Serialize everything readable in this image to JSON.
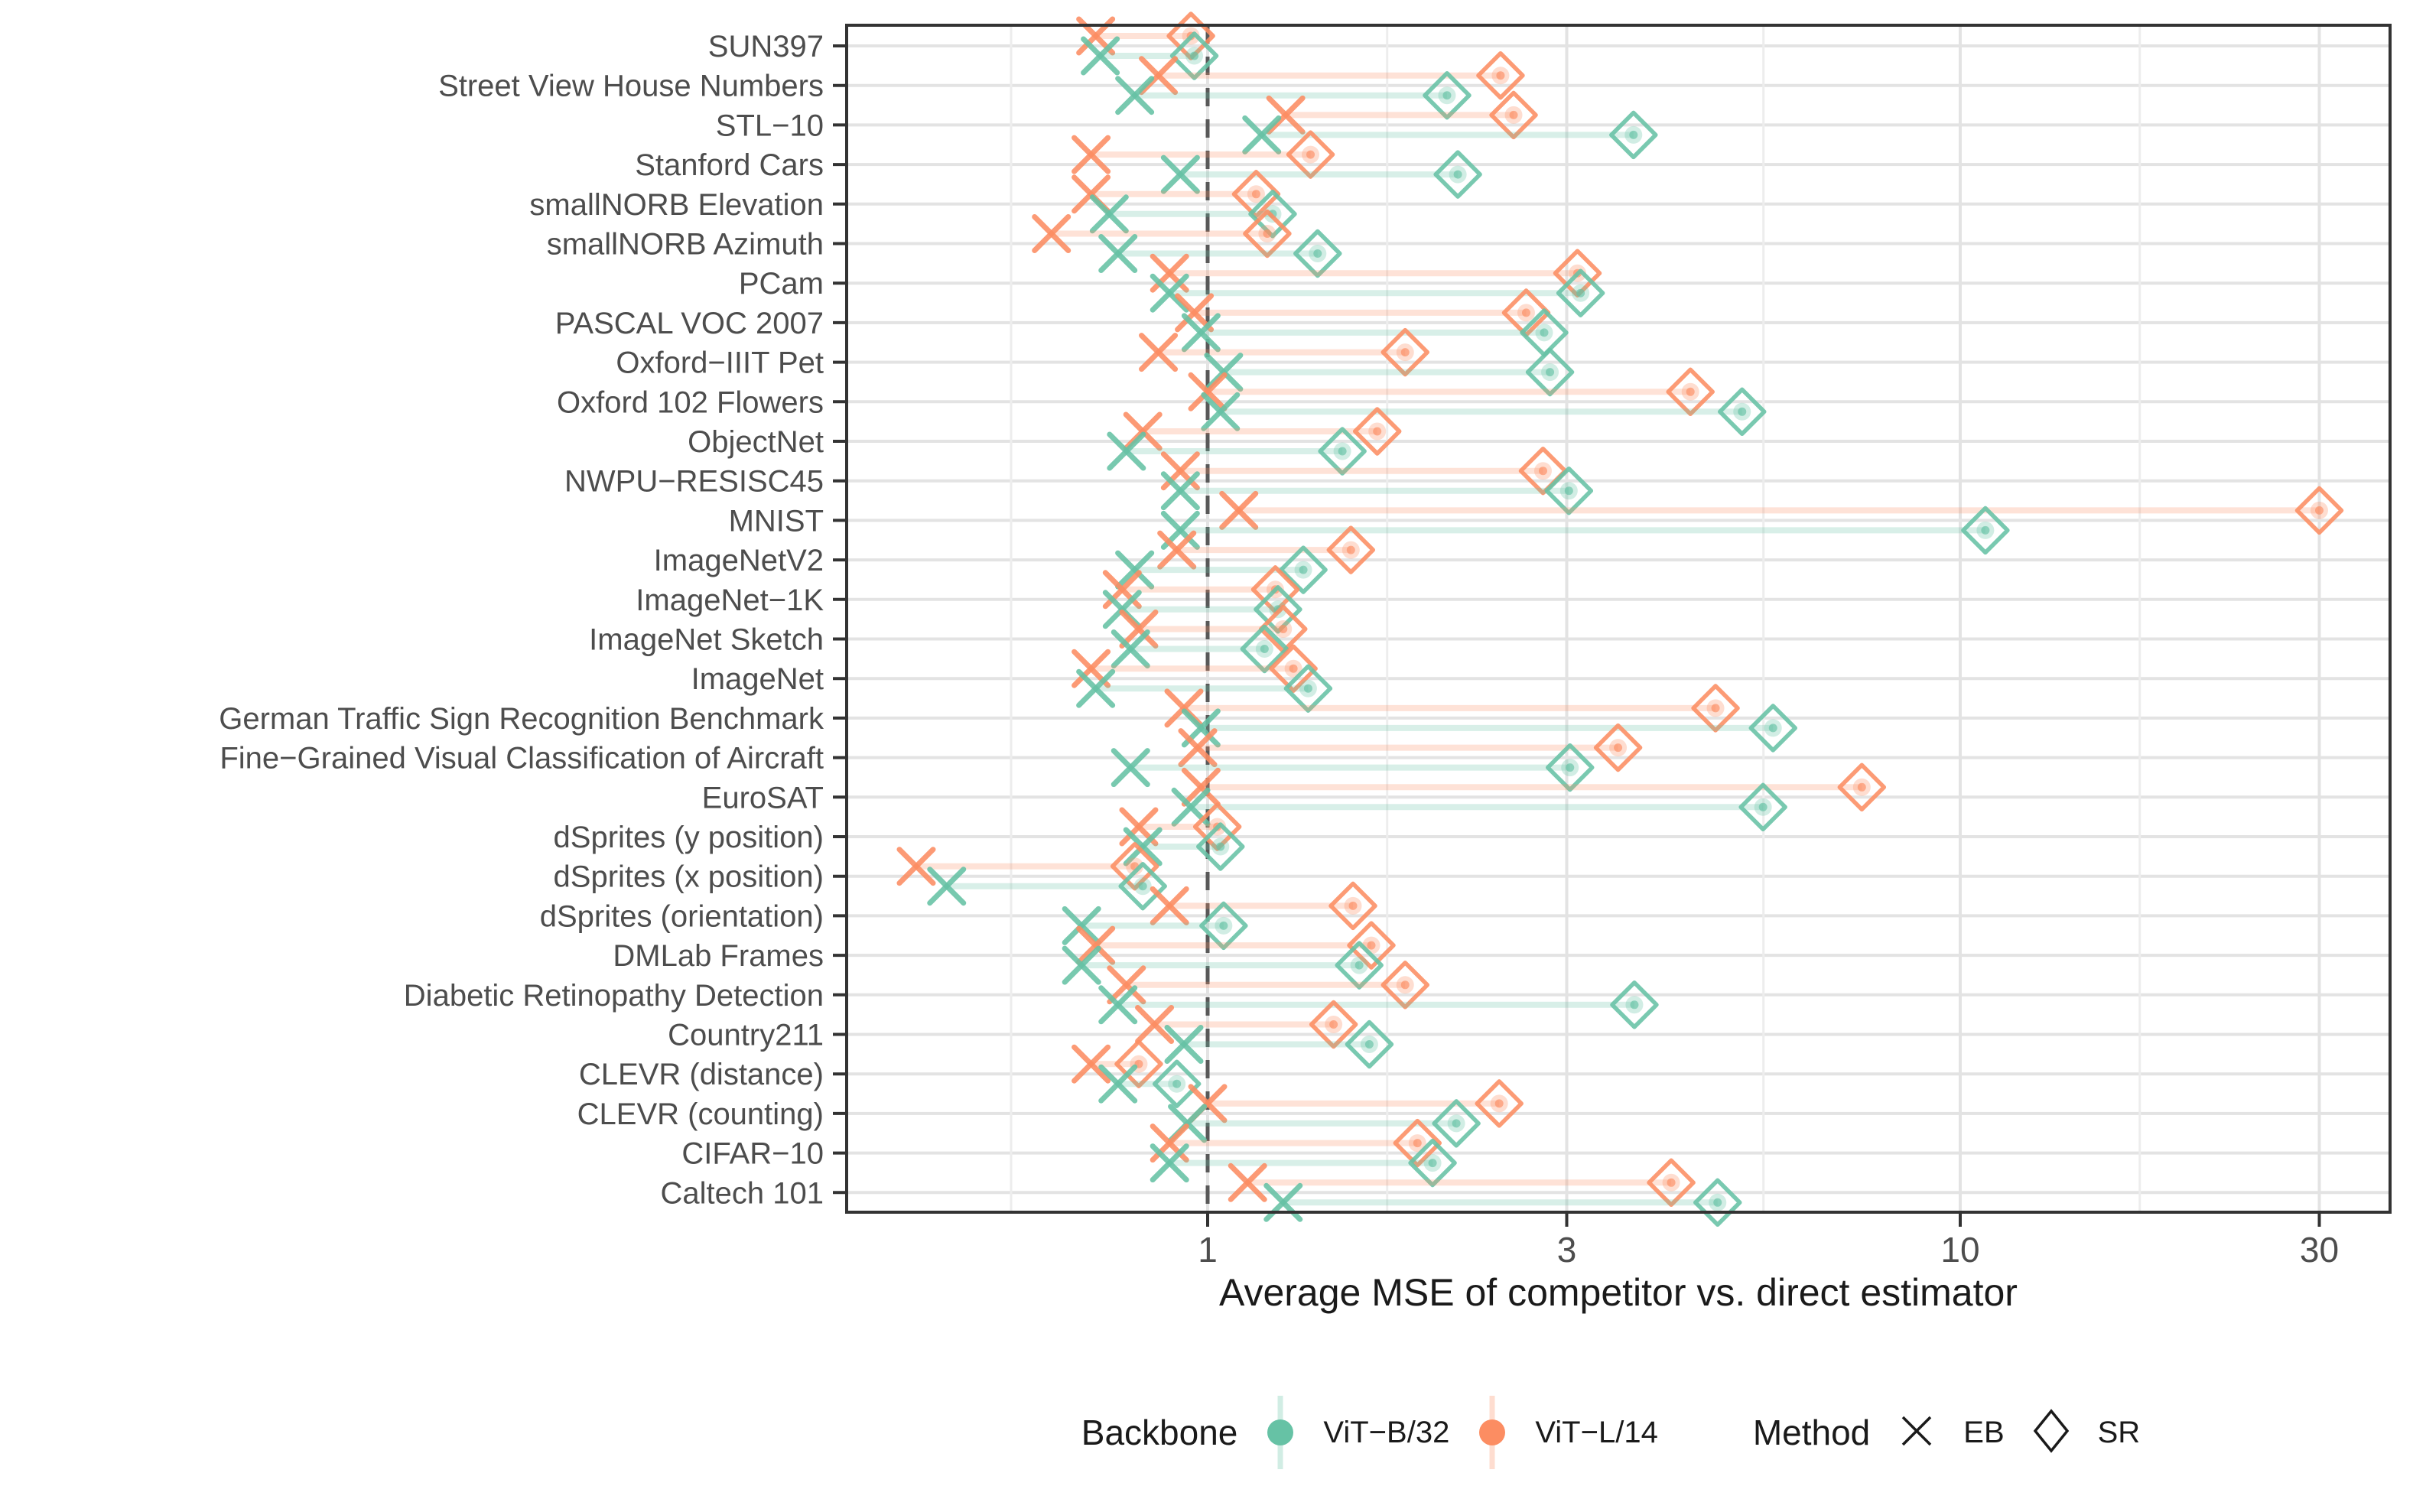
{
  "figure": {
    "xlabel": "Average MSE of competitor vs. direct estimator"
  },
  "legend": {
    "backbone_title": "Backbone",
    "method_title": "Method",
    "backbones": [
      {
        "key": "vitb32",
        "label": "ViT−B/32",
        "color": "#66C2A5"
      },
      {
        "key": "vitl14",
        "label": "ViT−L/14",
        "color": "#FC8D62"
      }
    ],
    "methods": [
      {
        "key": "EB",
        "label": "EB",
        "glyph": "x"
      },
      {
        "key": "SR",
        "label": "SR",
        "glyph": "diamond"
      }
    ]
  },
  "chart_data": {
    "type": "scatter",
    "subtype": "dumbbell-dotplot",
    "title": "",
    "xlabel": "Average MSE of competitor vs. direct estimator",
    "ylabel": "",
    "x_scale": "log10",
    "x_domain": [
      0.34,
      37.5
    ],
    "x_ticks": [
      1,
      3,
      10,
      30
    ],
    "x_minor_ticks": [
      0.548,
      1.732,
      5.477,
      17.32
    ],
    "reference_line_x": 1,
    "grid": "on",
    "legend_position": "bottom",
    "series_colors": {
      "ViT−B/32": "#66C2A5",
      "ViT−L/14": "#FC8D62"
    },
    "marker_shapes": {
      "EB": "x",
      "SR": "open-diamond"
    },
    "rows": [
      {
        "label": "SUN397",
        "vitb32": {
          "EB": 0.72,
          "SR": 0.96
        },
        "vitl14": {
          "EB": 0.71,
          "SR": 0.95
        }
      },
      {
        "label": "Street View House Numbers",
        "vitb32": {
          "EB": 0.8,
          "SR": 2.08
        },
        "vitl14": {
          "EB": 0.86,
          "SR": 2.45
        }
      },
      {
        "label": "STL−10",
        "vitb32": {
          "EB": 1.18,
          "SR": 3.68
        },
        "vitl14": {
          "EB": 1.27,
          "SR": 2.55
        }
      },
      {
        "label": "Stanford Cars",
        "vitb32": {
          "EB": 0.92,
          "SR": 2.15
        },
        "vitl14": {
          "EB": 0.7,
          "SR": 1.37
        }
      },
      {
        "label": "smallNORB Elevation",
        "vitb32": {
          "EB": 0.74,
          "SR": 1.22
        },
        "vitl14": {
          "EB": 0.7,
          "SR": 1.16
        }
      },
      {
        "label": "smallNORB Azimuth",
        "vitb32": {
          "EB": 0.76,
          "SR": 1.4
        },
        "vitl14": {
          "EB": 0.62,
          "SR": 1.2
        }
      },
      {
        "label": "PCam",
        "vitb32": {
          "EB": 0.89,
          "SR": 3.13
        },
        "vitl14": {
          "EB": 0.89,
          "SR": 3.1
        }
      },
      {
        "label": "PASCAL VOC 2007",
        "vitb32": {
          "EB": 0.98,
          "SR": 2.8
        },
        "vitl14": {
          "EB": 0.96,
          "SR": 2.65
        }
      },
      {
        "label": "Oxford−IIIT Pet",
        "vitb32": {
          "EB": 1.05,
          "SR": 2.85
        },
        "vitl14": {
          "EB": 0.86,
          "SR": 1.83
        }
      },
      {
        "label": "Oxford 102 Flowers",
        "vitb32": {
          "EB": 1.04,
          "SR": 5.13
        },
        "vitl14": {
          "EB": 1.0,
          "SR": 4.38
        }
      },
      {
        "label": "ObjectNet",
        "vitb32": {
          "EB": 0.78,
          "SR": 1.51
        },
        "vitl14": {
          "EB": 0.82,
          "SR": 1.68
        }
      },
      {
        "label": "NWPU−RESISC45",
        "vitb32": {
          "EB": 0.92,
          "SR": 3.02
        },
        "vitl14": {
          "EB": 0.92,
          "SR": 2.79
        }
      },
      {
        "label": "MNIST",
        "vitb32": {
          "EB": 0.92,
          "SR": 10.8
        },
        "vitl14": {
          "EB": 1.1,
          "SR": 30.0
        }
      },
      {
        "label": "ImageNetV2",
        "vitb32": {
          "EB": 0.8,
          "SR": 1.34
        },
        "vitl14": {
          "EB": 0.91,
          "SR": 1.55
        }
      },
      {
        "label": "ImageNet−1K",
        "vitb32": {
          "EB": 0.77,
          "SR": 1.24
        },
        "vitl14": {
          "EB": 0.77,
          "SR": 1.23
        }
      },
      {
        "label": "ImageNet Sketch",
        "vitb32": {
          "EB": 0.79,
          "SR": 1.19
        },
        "vitl14": {
          "EB": 0.81,
          "SR": 1.26
        }
      },
      {
        "label": "ImageNet",
        "vitb32": {
          "EB": 0.71,
          "SR": 1.36
        },
        "vitl14": {
          "EB": 0.7,
          "SR": 1.3
        }
      },
      {
        "label": "German Traffic Sign Recognition Benchmark",
        "vitb32": {
          "EB": 0.98,
          "SR": 5.64
        },
        "vitl14": {
          "EB": 0.93,
          "SR": 4.73
        }
      },
      {
        "label": "Fine−Grained Visual Classification of Aircraft",
        "vitb32": {
          "EB": 0.79,
          "SR": 3.03
        },
        "vitl14": {
          "EB": 0.97,
          "SR": 3.51
        }
      },
      {
        "label": "EuroSAT",
        "vitb32": {
          "EB": 0.95,
          "SR": 5.47
        },
        "vitl14": {
          "EB": 0.98,
          "SR": 7.4
        }
      },
      {
        "label": "dSprites (y position)",
        "vitb32": {
          "EB": 0.82,
          "SR": 1.04
        },
        "vitl14": {
          "EB": 0.81,
          "SR": 1.03
        }
      },
      {
        "label": "dSprites (x position)",
        "vitb32": {
          "EB": 0.45,
          "SR": 0.82
        },
        "vitl14": {
          "EB": 0.41,
          "SR": 0.8
        }
      },
      {
        "label": "dSprites (orientation)",
        "vitb32": {
          "EB": 0.68,
          "SR": 1.05
        },
        "vitl14": {
          "EB": 0.89,
          "SR": 1.56
        }
      },
      {
        "label": "DMLab Frames",
        "vitb32": {
          "EB": 0.68,
          "SR": 1.59
        },
        "vitl14": {
          "EB": 0.71,
          "SR": 1.65
        }
      },
      {
        "label": "Diabetic Retinopathy Detection",
        "vitb32": {
          "EB": 0.76,
          "SR": 3.69
        },
        "vitl14": {
          "EB": 0.78,
          "SR": 1.83
        }
      },
      {
        "label": "Country211",
        "vitb32": {
          "EB": 0.93,
          "SR": 1.64
        },
        "vitl14": {
          "EB": 0.85,
          "SR": 1.47
        }
      },
      {
        "label": "CLEVR (distance)",
        "vitb32": {
          "EB": 0.76,
          "SR": 0.91
        },
        "vitl14": {
          "EB": 0.7,
          "SR": 0.81
        }
      },
      {
        "label": "CLEVR (counting)",
        "vitb32": {
          "EB": 0.94,
          "SR": 2.14
        },
        "vitl14": {
          "EB": 1.0,
          "SR": 2.44
        }
      },
      {
        "label": "CIFAR−10",
        "vitb32": {
          "EB": 0.89,
          "SR": 1.99
        },
        "vitl14": {
          "EB": 0.89,
          "SR": 1.9
        }
      },
      {
        "label": "Caltech 101",
        "vitb32": {
          "EB": 1.26,
          "SR": 4.76
        },
        "vitl14": {
          "EB": 1.13,
          "SR": 4.13
        }
      }
    ]
  },
  "style": {
    "grid_major_color": "#E3E3E3",
    "grid_minor_color": "#EDEDED",
    "panel_border_color": "#333333",
    "axis_text_color": "#4D4D4D",
    "axis_title_color": "#1a1a1a",
    "ref_line_color": "#595959",
    "background": "#FFFFFF"
  }
}
